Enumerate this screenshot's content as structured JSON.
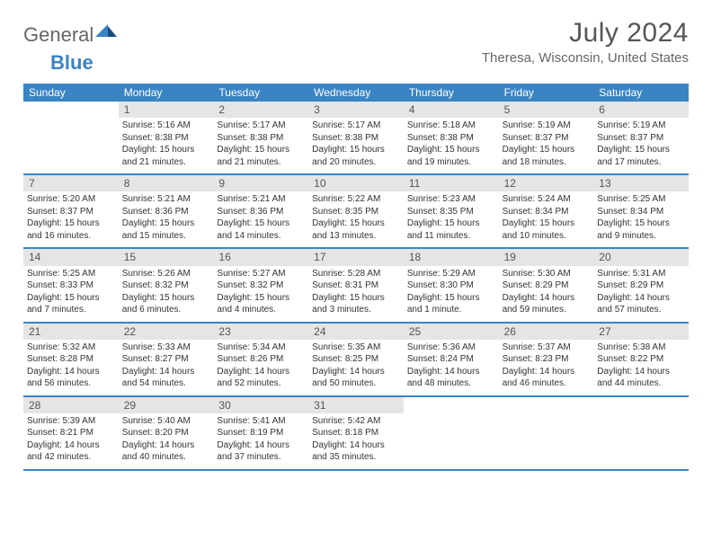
{
  "brand": {
    "part1": "General",
    "part2": "Blue"
  },
  "title": "July 2024",
  "location": "Theresa, Wisconsin, United States",
  "colors": {
    "header_bg": "#3a84c4",
    "header_text": "#ffffff",
    "daynum_bg": "#e5e5e5",
    "border": "#3a84c4",
    "title_color": "#555555",
    "text_color": "#333333",
    "background": "#ffffff"
  },
  "layout": {
    "columns": 7,
    "rows": 5,
    "day_fontsize": 10,
    "weekday_fontsize": 12,
    "title_fontsize": 30
  },
  "weekdays": [
    "Sunday",
    "Monday",
    "Tuesday",
    "Wednesday",
    "Thursday",
    "Friday",
    "Saturday"
  ],
  "weeks": [
    [
      {
        "num": "",
        "empty": true
      },
      {
        "num": "1",
        "sunrise": "Sunrise: 5:16 AM",
        "sunset": "Sunset: 8:38 PM",
        "daylight": "Daylight: 15 hours and 21 minutes."
      },
      {
        "num": "2",
        "sunrise": "Sunrise: 5:17 AM",
        "sunset": "Sunset: 8:38 PM",
        "daylight": "Daylight: 15 hours and 21 minutes."
      },
      {
        "num": "3",
        "sunrise": "Sunrise: 5:17 AM",
        "sunset": "Sunset: 8:38 PM",
        "daylight": "Daylight: 15 hours and 20 minutes."
      },
      {
        "num": "4",
        "sunrise": "Sunrise: 5:18 AM",
        "sunset": "Sunset: 8:38 PM",
        "daylight": "Daylight: 15 hours and 19 minutes."
      },
      {
        "num": "5",
        "sunrise": "Sunrise: 5:19 AM",
        "sunset": "Sunset: 8:37 PM",
        "daylight": "Daylight: 15 hours and 18 minutes."
      },
      {
        "num": "6",
        "sunrise": "Sunrise: 5:19 AM",
        "sunset": "Sunset: 8:37 PM",
        "daylight": "Daylight: 15 hours and 17 minutes."
      }
    ],
    [
      {
        "num": "7",
        "sunrise": "Sunrise: 5:20 AM",
        "sunset": "Sunset: 8:37 PM",
        "daylight": "Daylight: 15 hours and 16 minutes."
      },
      {
        "num": "8",
        "sunrise": "Sunrise: 5:21 AM",
        "sunset": "Sunset: 8:36 PM",
        "daylight": "Daylight: 15 hours and 15 minutes."
      },
      {
        "num": "9",
        "sunrise": "Sunrise: 5:21 AM",
        "sunset": "Sunset: 8:36 PM",
        "daylight": "Daylight: 15 hours and 14 minutes."
      },
      {
        "num": "10",
        "sunrise": "Sunrise: 5:22 AM",
        "sunset": "Sunset: 8:35 PM",
        "daylight": "Daylight: 15 hours and 13 minutes."
      },
      {
        "num": "11",
        "sunrise": "Sunrise: 5:23 AM",
        "sunset": "Sunset: 8:35 PM",
        "daylight": "Daylight: 15 hours and 11 minutes."
      },
      {
        "num": "12",
        "sunrise": "Sunrise: 5:24 AM",
        "sunset": "Sunset: 8:34 PM",
        "daylight": "Daylight: 15 hours and 10 minutes."
      },
      {
        "num": "13",
        "sunrise": "Sunrise: 5:25 AM",
        "sunset": "Sunset: 8:34 PM",
        "daylight": "Daylight: 15 hours and 9 minutes."
      }
    ],
    [
      {
        "num": "14",
        "sunrise": "Sunrise: 5:25 AM",
        "sunset": "Sunset: 8:33 PM",
        "daylight": "Daylight: 15 hours and 7 minutes."
      },
      {
        "num": "15",
        "sunrise": "Sunrise: 5:26 AM",
        "sunset": "Sunset: 8:32 PM",
        "daylight": "Daylight: 15 hours and 6 minutes."
      },
      {
        "num": "16",
        "sunrise": "Sunrise: 5:27 AM",
        "sunset": "Sunset: 8:32 PM",
        "daylight": "Daylight: 15 hours and 4 minutes."
      },
      {
        "num": "17",
        "sunrise": "Sunrise: 5:28 AM",
        "sunset": "Sunset: 8:31 PM",
        "daylight": "Daylight: 15 hours and 3 minutes."
      },
      {
        "num": "18",
        "sunrise": "Sunrise: 5:29 AM",
        "sunset": "Sunset: 8:30 PM",
        "daylight": "Daylight: 15 hours and 1 minute."
      },
      {
        "num": "19",
        "sunrise": "Sunrise: 5:30 AM",
        "sunset": "Sunset: 8:29 PM",
        "daylight": "Daylight: 14 hours and 59 minutes."
      },
      {
        "num": "20",
        "sunrise": "Sunrise: 5:31 AM",
        "sunset": "Sunset: 8:29 PM",
        "daylight": "Daylight: 14 hours and 57 minutes."
      }
    ],
    [
      {
        "num": "21",
        "sunrise": "Sunrise: 5:32 AM",
        "sunset": "Sunset: 8:28 PM",
        "daylight": "Daylight: 14 hours and 56 minutes."
      },
      {
        "num": "22",
        "sunrise": "Sunrise: 5:33 AM",
        "sunset": "Sunset: 8:27 PM",
        "daylight": "Daylight: 14 hours and 54 minutes."
      },
      {
        "num": "23",
        "sunrise": "Sunrise: 5:34 AM",
        "sunset": "Sunset: 8:26 PM",
        "daylight": "Daylight: 14 hours and 52 minutes."
      },
      {
        "num": "24",
        "sunrise": "Sunrise: 5:35 AM",
        "sunset": "Sunset: 8:25 PM",
        "daylight": "Daylight: 14 hours and 50 minutes."
      },
      {
        "num": "25",
        "sunrise": "Sunrise: 5:36 AM",
        "sunset": "Sunset: 8:24 PM",
        "daylight": "Daylight: 14 hours and 48 minutes."
      },
      {
        "num": "26",
        "sunrise": "Sunrise: 5:37 AM",
        "sunset": "Sunset: 8:23 PM",
        "daylight": "Daylight: 14 hours and 46 minutes."
      },
      {
        "num": "27",
        "sunrise": "Sunrise: 5:38 AM",
        "sunset": "Sunset: 8:22 PM",
        "daylight": "Daylight: 14 hours and 44 minutes."
      }
    ],
    [
      {
        "num": "28",
        "sunrise": "Sunrise: 5:39 AM",
        "sunset": "Sunset: 8:21 PM",
        "daylight": "Daylight: 14 hours and 42 minutes."
      },
      {
        "num": "29",
        "sunrise": "Sunrise: 5:40 AM",
        "sunset": "Sunset: 8:20 PM",
        "daylight": "Daylight: 14 hours and 40 minutes."
      },
      {
        "num": "30",
        "sunrise": "Sunrise: 5:41 AM",
        "sunset": "Sunset: 8:19 PM",
        "daylight": "Daylight: 14 hours and 37 minutes."
      },
      {
        "num": "31",
        "sunrise": "Sunrise: 5:42 AM",
        "sunset": "Sunset: 8:18 PM",
        "daylight": "Daylight: 14 hours and 35 minutes."
      },
      {
        "num": "",
        "empty": true
      },
      {
        "num": "",
        "empty": true
      },
      {
        "num": "",
        "empty": true
      }
    ]
  ]
}
